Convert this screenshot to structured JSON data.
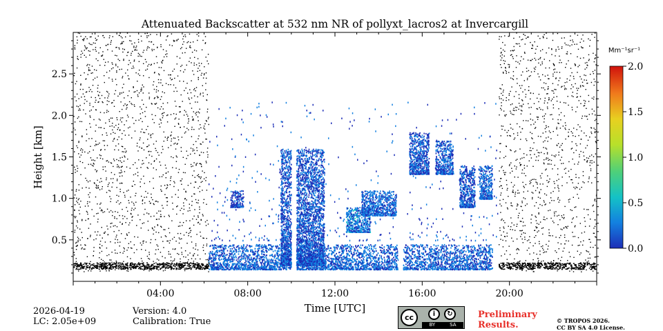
{
  "chart_data": {
    "type": "heatmap",
    "title": "Attenuated Backscatter at 532 nm NR of pollyxt_lacros2 at Invercargill",
    "xlabel": "Time [UTC]",
    "ylabel": "Height [km]",
    "xlim_hours": [
      0,
      24
    ],
    "ylim_km": [
      0,
      3.0
    ],
    "x_ticks": [
      {
        "hour": 4,
        "label": "04:00"
      },
      {
        "hour": 8,
        "label": "08:00"
      },
      {
        "hour": 12,
        "label": "12:00"
      },
      {
        "hour": 16,
        "label": "16:00"
      },
      {
        "hour": 20,
        "label": "20:00"
      }
    ],
    "y_ticks": [
      {
        "value": 0.5,
        "label": "0.5"
      },
      {
        "value": 1.0,
        "label": "1.0"
      },
      {
        "value": 1.5,
        "label": "1.5"
      },
      {
        "value": 2.0,
        "label": "2.0"
      },
      {
        "value": 2.5,
        "label": "2.5"
      }
    ],
    "colorbar": {
      "unit_label": "Mm⁻¹sr⁻¹",
      "range": [
        0,
        2.0
      ],
      "ticks": [
        {
          "value": 0.0,
          "label": "0.0"
        },
        {
          "value": 0.5,
          "label": "0.5"
        },
        {
          "value": 1.0,
          "label": "1.0"
        },
        {
          "value": 1.5,
          "label": "1.5"
        },
        {
          "value": 2.0,
          "label": "2.0"
        }
      ],
      "colors": [
        "#1d2eb7",
        "#1380e0",
        "#14c2c6",
        "#6bd63f",
        "#e8e020",
        "#f59a1e",
        "#f03a18",
        "#d0120c"
      ]
    },
    "noise_periods_hours": [
      [
        0.0,
        6.2
      ],
      [
        19.5,
        24.0
      ]
    ],
    "signal_period_hours": [
      6.2,
      19.5
    ],
    "data_gaps_hours": [
      10.1,
      15.0
    ],
    "near_surface_layer_km": [
      0.15,
      0.3
    ],
    "aerosol_features": [
      {
        "time_start": 6.2,
        "time_end": 19.2,
        "height_bottom": 0.15,
        "height_top": 0.45,
        "value_approx": 0.3
      },
      {
        "time_start": 7.2,
        "time_end": 7.8,
        "height_bottom": 0.9,
        "height_top": 1.1,
        "value_approx": 0.2
      },
      {
        "time_start": 9.5,
        "time_end": 11.5,
        "height_bottom": 0.2,
        "height_top": 1.6,
        "value_approx": 0.25
      },
      {
        "time_start": 12.5,
        "time_end": 13.6,
        "height_bottom": 0.6,
        "height_top": 0.9,
        "value_approx": 0.35
      },
      {
        "time_start": 13.2,
        "time_end": 14.8,
        "height_bottom": 0.8,
        "height_top": 1.1,
        "value_approx": 0.3
      },
      {
        "time_start": 15.4,
        "time_end": 16.3,
        "height_bottom": 1.3,
        "height_top": 1.8,
        "value_approx": 0.25
      },
      {
        "time_start": 16.6,
        "time_end": 17.4,
        "height_bottom": 1.3,
        "height_top": 1.7,
        "value_approx": 0.25
      },
      {
        "time_start": 17.7,
        "time_end": 18.4,
        "height_bottom": 0.9,
        "height_top": 1.4,
        "value_approx": 0.25
      },
      {
        "time_start": 18.6,
        "time_end": 19.2,
        "height_bottom": 1.0,
        "height_top": 1.4,
        "value_approx": 0.3
      }
    ]
  },
  "meta": {
    "date": "2026-04-19",
    "lc": "LC: 2.05e+09",
    "version": "Version: 4.0",
    "calibration": "Calibration: True",
    "preliminary_line1": "Preliminary",
    "preliminary_line2": "Results.",
    "copyright_line1": "© TROPOS 2026.",
    "copyright_line2": "CC BY SA 4.0 License."
  },
  "license_badge": {
    "cc": "cc",
    "by": "BY",
    "sa": "SA",
    "by_icon": "i",
    "sa_icon": "↻"
  }
}
